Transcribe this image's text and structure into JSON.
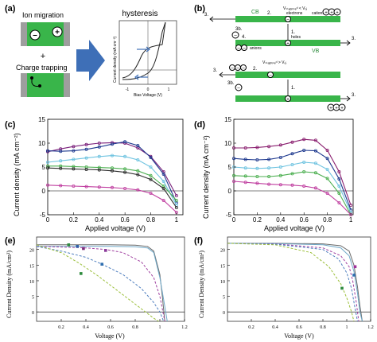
{
  "panel_a": {
    "label": "(a)",
    "ion_migration": "Ion migration",
    "plus": "+",
    "charge_trapping": "Charge trapping",
    "hysteresis_title": "hysteresis",
    "inset_xlabel": "Bias Voltage (V)",
    "inset_ylabel": "Current density (mA cm⁻²)",
    "inset_xticks": [
      "-1",
      "0",
      "1"
    ]
  },
  "panel_b": {
    "label": "(b)",
    "cb": "CB",
    "vb": "VB",
    "electrons": "electrons",
    "holes": "holes",
    "cations": "cations",
    "anions": "anions",
    "cond_top": "Vₛₜₐᵦᵢₗᵢₛₑᵈ < Vₒⱼ",
    "cond_mid": "Vₛₜₐᵦᵢₗᵢₛₑᵈ > Vₒⱼ",
    "step1": "1.",
    "step2": "2.",
    "step3": "3.",
    "step3b": "3b.",
    "step4": "4."
  },
  "panel_c": {
    "label": "(c)",
    "xlabel": "Applied voltage (V)",
    "ylabel": "Current density (mA cm⁻²)",
    "xticks": [
      "0",
      "0.2",
      "0.4",
      "0.6",
      "0.8",
      "1"
    ],
    "yticks": [
      "-5",
      "0",
      "5",
      "10",
      "15"
    ]
  },
  "panel_d": {
    "label": "(d)",
    "xlabel": "Applied voltage (V)",
    "ylabel": "Current density (mA cm⁻²)",
    "xticks": [
      "0",
      "0.2",
      "0.4",
      "0.6",
      "0.8",
      "1"
    ],
    "yticks": [
      "-5",
      "0",
      "5",
      "10",
      "15"
    ]
  },
  "panel_e": {
    "label": "(e)",
    "xlabel": "Voltage (V)",
    "ylabel": "Current Density (mA/cm²)",
    "xticks": [
      "0.2",
      "0.4",
      "0.6",
      "0.8",
      "1",
      "1.2"
    ],
    "yticks": [
      "0",
      "5",
      "10",
      "15",
      "20"
    ]
  },
  "panel_f": {
    "label": "(f)",
    "xlabel": "Voltage (V)",
    "ylabel": "Current Density (mA/cm²)",
    "xticks": [
      "0.2",
      "0.4",
      "0.6",
      "0.8",
      "1",
      "1.2"
    ],
    "yticks": [
      "0",
      "5",
      "10",
      "15",
      "20"
    ]
  },
  "chart_data": [
    {
      "type": "line",
      "panel": "c",
      "xlim": [
        0,
        1.05
      ],
      "ylim": [
        -5,
        15
      ],
      "series": [
        {
          "color": "#7a1f7a",
          "x": [
            0,
            0.1,
            0.2,
            0.3,
            0.4,
            0.5,
            0.6,
            0.7,
            0.8,
            0.9,
            1.0
          ],
          "values": [
            8.2,
            8.8,
            9.3,
            9.7,
            10.0,
            10.1,
            10.0,
            9.0,
            7.2,
            4.0,
            -1.0
          ]
        },
        {
          "color": "#1f3a8f",
          "x": [
            0,
            0.1,
            0.2,
            0.3,
            0.4,
            0.5,
            0.6,
            0.7,
            0.8,
            0.9,
            1.0
          ],
          "values": [
            8.4,
            8.3,
            8.4,
            8.7,
            9.2,
            9.8,
            10.3,
            9.5,
            7.0,
            3.5,
            -2.5
          ]
        },
        {
          "color": "#6ec3e0",
          "x": [
            0,
            0.1,
            0.2,
            0.3,
            0.4,
            0.5,
            0.6,
            0.7,
            0.8,
            0.9,
            1.0
          ],
          "values": [
            6.0,
            6.3,
            6.6,
            6.9,
            7.2,
            7.4,
            7.2,
            6.5,
            5.0,
            2.0,
            -3.0
          ]
        },
        {
          "color": "#4caf50",
          "x": [
            0,
            0.1,
            0.2,
            0.3,
            0.4,
            0.5,
            0.6,
            0.7,
            0.8,
            0.9,
            1.0
          ],
          "values": [
            5.2,
            5.2,
            5.1,
            5.0,
            4.9,
            4.8,
            4.6,
            4.2,
            3.2,
            1.0,
            -2.0
          ]
        },
        {
          "color": "#2b2b2b",
          "x": [
            0,
            0.1,
            0.2,
            0.3,
            0.4,
            0.5,
            0.6,
            0.7,
            0.8,
            0.9,
            1.0
          ],
          "values": [
            4.8,
            4.7,
            4.6,
            4.5,
            4.4,
            4.2,
            3.9,
            3.4,
            2.4,
            0.5,
            -3.5
          ]
        },
        {
          "color": "#c03fa0",
          "x": [
            0,
            0.1,
            0.2,
            0.3,
            0.4,
            0.5,
            0.6,
            0.7,
            0.8,
            0.9,
            1.0
          ],
          "values": [
            1.2,
            1.1,
            1.0,
            0.9,
            0.8,
            0.7,
            0.5,
            0.2,
            -0.5,
            -2.0,
            -4.5
          ]
        }
      ]
    },
    {
      "type": "line",
      "panel": "d",
      "xlim": [
        0,
        1.02
      ],
      "ylim": [
        -5,
        15
      ],
      "series": [
        {
          "color": "#8a1f6f",
          "x": [
            0,
            0.1,
            0.2,
            0.3,
            0.4,
            0.5,
            0.6,
            0.7,
            0.8,
            0.9,
            1.0
          ],
          "values": [
            9.0,
            9.0,
            9.1,
            9.3,
            9.6,
            10.2,
            10.8,
            10.6,
            8.5,
            4.0,
            -3.0
          ]
        },
        {
          "color": "#1f3a8f",
          "x": [
            0,
            0.1,
            0.2,
            0.3,
            0.4,
            0.5,
            0.6,
            0.7,
            0.8,
            0.9,
            1.0
          ],
          "values": [
            6.8,
            6.6,
            6.5,
            6.6,
            7.0,
            7.8,
            8.5,
            8.4,
            6.8,
            2.5,
            -4.0
          ]
        },
        {
          "color": "#6ec3e0",
          "x": [
            0,
            0.1,
            0.2,
            0.3,
            0.4,
            0.5,
            0.6,
            0.7,
            0.8,
            0.9,
            1.0
          ],
          "values": [
            5.0,
            4.8,
            4.7,
            4.8,
            5.0,
            5.5,
            6.0,
            5.8,
            4.5,
            1.0,
            -4.5
          ]
        },
        {
          "color": "#4caf50",
          "x": [
            0,
            0.1,
            0.2,
            0.3,
            0.4,
            0.5,
            0.6,
            0.7,
            0.8,
            0.9,
            1.0
          ],
          "values": [
            3.2,
            3.1,
            3.0,
            3.0,
            3.2,
            3.6,
            4.0,
            3.8,
            2.6,
            -0.5,
            -5.0
          ]
        },
        {
          "color": "#c03fa0",
          "x": [
            0,
            0.1,
            0.2,
            0.3,
            0.4,
            0.5,
            0.6,
            0.7,
            0.8,
            0.9,
            1.0
          ],
          "values": [
            2.0,
            1.8,
            1.6,
            1.4,
            1.3,
            1.2,
            1.0,
            0.6,
            -0.5,
            -2.5,
            -5.0
          ]
        }
      ]
    },
    {
      "type": "line",
      "panel": "e",
      "xlim": [
        0,
        1.2
      ],
      "ylim": [
        -3,
        24
      ],
      "series": [
        {
          "color": "#6a6a6a",
          "dashed": false,
          "x": [
            0,
            0.3,
            0.6,
            0.8,
            0.9,
            0.95,
            1.0,
            1.02,
            1.04
          ],
          "values": [
            21.5,
            21.5,
            21.5,
            21.4,
            21.0,
            19.5,
            12.0,
            5.0,
            -3.0
          ]
        },
        {
          "color": "#6fa8c8",
          "dashed": false,
          "x": [
            0,
            0.3,
            0.6,
            0.8,
            0.9,
            0.95,
            1.0,
            1.03,
            1.06
          ],
          "values": [
            21.0,
            21.0,
            21.0,
            20.9,
            20.5,
            19.0,
            11.0,
            4.0,
            -3.0
          ]
        },
        {
          "color": "#a040a0",
          "dashed": true,
          "x": [
            0,
            0.2,
            0.4,
            0.56,
            0.7,
            0.85,
            0.95,
            1.0,
            1.04
          ],
          "values": [
            21.0,
            20.8,
            20.5,
            20.0,
            19.0,
            16.0,
            11.0,
            5.0,
            -3.0
          ]
        },
        {
          "color": "#4f7fbf",
          "dashed": true,
          "x": [
            0,
            0.2,
            0.4,
            0.53,
            0.7,
            0.85,
            0.95,
            1.0,
            1.03
          ],
          "values": [
            21.0,
            19.5,
            17.5,
            15.3,
            12.0,
            7.5,
            3.0,
            0.0,
            -3.0
          ]
        },
        {
          "color": "#9bbf3a",
          "dashed": true,
          "x": [
            0,
            0.2,
            0.35,
            0.5,
            0.65,
            0.8,
            0.9,
            0.95,
            0.99
          ],
          "values": [
            21.5,
            19.0,
            15.5,
            11.5,
            7.0,
            2.5,
            -0.5,
            -2.0,
            -3.0
          ]
        }
      ],
      "markers": [
        {
          "x": 0.26,
          "y": 21.5,
          "color": "#2e8b3e"
        },
        {
          "x": 0.33,
          "y": 21.0,
          "color": "#2f5fa8"
        },
        {
          "x": 0.38,
          "y": 20.3,
          "color": "#7a2a7a"
        },
        {
          "x": 0.56,
          "y": 19.7,
          "color": "#8a3a9a"
        },
        {
          "x": 0.53,
          "y": 15.3,
          "color": "#2f6fb0"
        },
        {
          "x": 0.36,
          "y": 12.3,
          "color": "#2e8b3e"
        }
      ]
    },
    {
      "type": "line",
      "panel": "f",
      "xlim": [
        0,
        1.2
      ],
      "ylim": [
        -3,
        24
      ],
      "series": [
        {
          "color": "#6a6a6a",
          "dashed": false,
          "x": [
            0,
            0.4,
            0.8,
            0.95,
            1.02,
            1.06,
            1.09,
            1.11,
            1.13
          ],
          "values": [
            22.0,
            22.0,
            21.8,
            21.2,
            19.5,
            15.0,
            8.0,
            2.0,
            -3.0
          ]
        },
        {
          "color": "#6fa8c8",
          "dashed": false,
          "x": [
            0,
            0.4,
            0.8,
            0.95,
            1.02,
            1.06,
            1.09,
            1.11,
            1.13
          ],
          "values": [
            22.0,
            21.9,
            21.5,
            20.5,
            18.0,
            13.0,
            6.0,
            0.0,
            -3.0
          ]
        },
        {
          "color": "#a040a0",
          "dashed": true,
          "x": [
            0,
            0.4,
            0.8,
            0.95,
            1.02,
            1.05,
            1.08,
            1.1
          ],
          "values": [
            22.0,
            21.8,
            20.5,
            18.0,
            14.5,
            10.0,
            3.0,
            -3.0
          ]
        },
        {
          "color": "#4f7fbf",
          "dashed": true,
          "x": [
            0,
            0.4,
            0.8,
            0.93,
            1.0,
            1.04,
            1.07,
            1.09
          ],
          "values": [
            22.0,
            21.7,
            20.0,
            17.0,
            12.5,
            7.5,
            1.0,
            -3.0
          ]
        },
        {
          "color": "#9bbf3a",
          "dashed": true,
          "x": [
            0,
            0.4,
            0.7,
            0.85,
            0.95,
            1.0,
            1.04,
            1.06
          ],
          "values": [
            22.0,
            21.5,
            19.0,
            14.5,
            9.0,
            4.5,
            0.0,
            -3.0
          ]
        }
      ],
      "markers": [
        {
          "x": 1.07,
          "y": 14.5,
          "color": "#a0309a"
        },
        {
          "x": 1.06,
          "y": 11.8,
          "color": "#2f6fb0"
        },
        {
          "x": 0.96,
          "y": 7.6,
          "color": "#2e8b3e"
        }
      ]
    }
  ]
}
